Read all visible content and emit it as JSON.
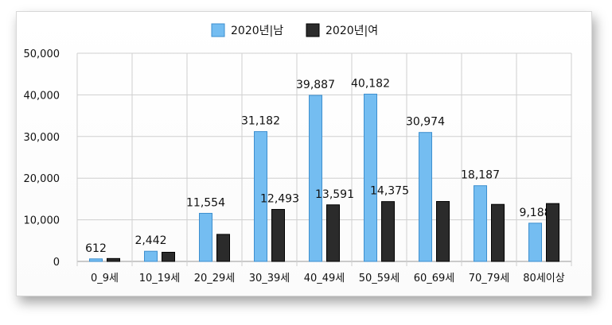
{
  "chart_data": {
    "type": "bar",
    "categories": [
      "0_9세",
      "10_19세",
      "20_29세",
      "30_39세",
      "40_49세",
      "50_59세",
      "60_69세",
      "70_79세",
      "80세이상"
    ],
    "series": [
      {
        "name": "2020년|남",
        "color": "#74bdf1",
        "values": [
          612,
          2442,
          11554,
          31182,
          39887,
          40182,
          30974,
          18187,
          9188
        ],
        "labels": [
          "612",
          "2,442",
          "11,554",
          "31,182",
          "39,887",
          "40,182",
          "30,974",
          "18,187",
          "9,188"
        ]
      },
      {
        "name": "2020년|여",
        "color": "#2b2b2b",
        "values": [
          700,
          2200,
          6500,
          12493,
          13591,
          14375,
          14400,
          13700,
          13900
        ],
        "labels": [
          "",
          "",
          "",
          "12,493",
          "13,591",
          "14,375",
          "",
          "",
          ""
        ]
      }
    ],
    "ylim": [
      0,
      50000
    ],
    "yticks": [
      0,
      10000,
      20000,
      30000,
      40000,
      50000
    ],
    "ytick_labels": [
      "0",
      "10,000",
      "20,000",
      "30,000",
      "40,000",
      "50,000"
    ],
    "title": "",
    "xlabel": "",
    "ylabel": "",
    "grid": true,
    "legend_position": "top-center"
  }
}
